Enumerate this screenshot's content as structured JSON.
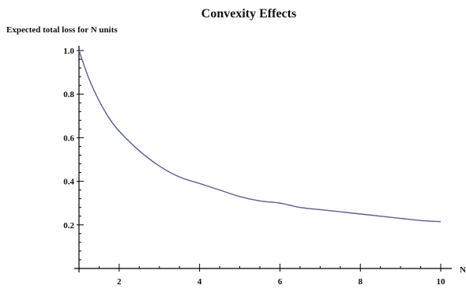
{
  "chart_data": {
    "type": "line",
    "title": "Convexity Effects",
    "ylabel": "Expected total loss for N units",
    "xlabel": "N",
    "xlim": [
      1,
      10
    ],
    "ylim": [
      0,
      1.0
    ],
    "x_ticks": [
      2,
      4,
      6,
      8,
      10
    ],
    "y_ticks": [
      0.2,
      0.4,
      0.6,
      0.8,
      1.0
    ],
    "x_tick_labels": [
      "2",
      "4",
      "6",
      "8",
      "10"
    ],
    "y_tick_labels": [
      "0.2",
      "0.4",
      "0.6",
      "0.8",
      "1.0"
    ],
    "grid": false,
    "legend": "none",
    "color": "#5b5ba8",
    "series": [
      {
        "x": [
          1,
          1.25,
          1.5,
          1.75,
          2,
          2.5,
          3,
          3.5,
          4,
          4.5,
          5,
          5.5,
          6,
          6.5,
          7,
          7.5,
          8,
          8.5,
          9,
          9.5,
          10
        ],
        "values": [
          1.0,
          0.87,
          0.77,
          0.69,
          0.63,
          0.54,
          0.47,
          0.42,
          0.39,
          0.36,
          0.33,
          0.31,
          0.3,
          0.28,
          0.27,
          0.26,
          0.25,
          0.24,
          0.23,
          0.22,
          0.215
        ]
      }
    ]
  }
}
